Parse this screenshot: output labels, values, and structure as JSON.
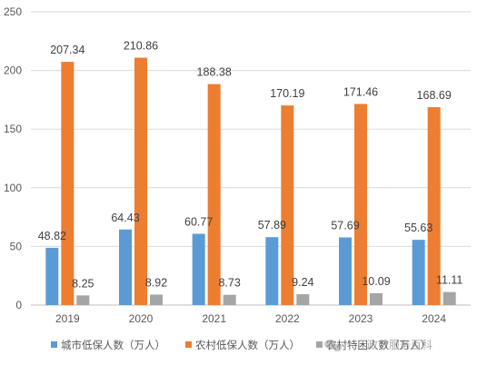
{
  "chart_data": {
    "type": "bar",
    "title": "",
    "xlabel": "",
    "ylabel": "",
    "categories": [
      "2019",
      "2020",
      "2021",
      "2022",
      "2023",
      "2024"
    ],
    "ylim": [
      0,
      250
    ],
    "yticks": [
      0,
      50,
      100,
      150,
      200,
      250
    ],
    "grid": true,
    "legend_position": "bottom",
    "series": [
      {
        "name": "城市低保人数（万人）",
        "color": "#5b9bd5",
        "values": [
          48.82,
          64.43,
          60.77,
          57.89,
          57.69,
          55.63
        ]
      },
      {
        "name": "农村低保人数（万人）",
        "color": "#ed7d31",
        "values": [
          207.34,
          210.86,
          188.38,
          170.19,
          171.46,
          168.69
        ]
      },
      {
        "name": "农村特困人数（万人）",
        "color": "#a5a5a5",
        "values": [
          8.25,
          8.92,
          8.73,
          9.24,
          10.09,
          11.11
        ]
      }
    ]
  },
  "watermark": {
    "icon": "wechat-icon",
    "text": "政节服务百科"
  }
}
